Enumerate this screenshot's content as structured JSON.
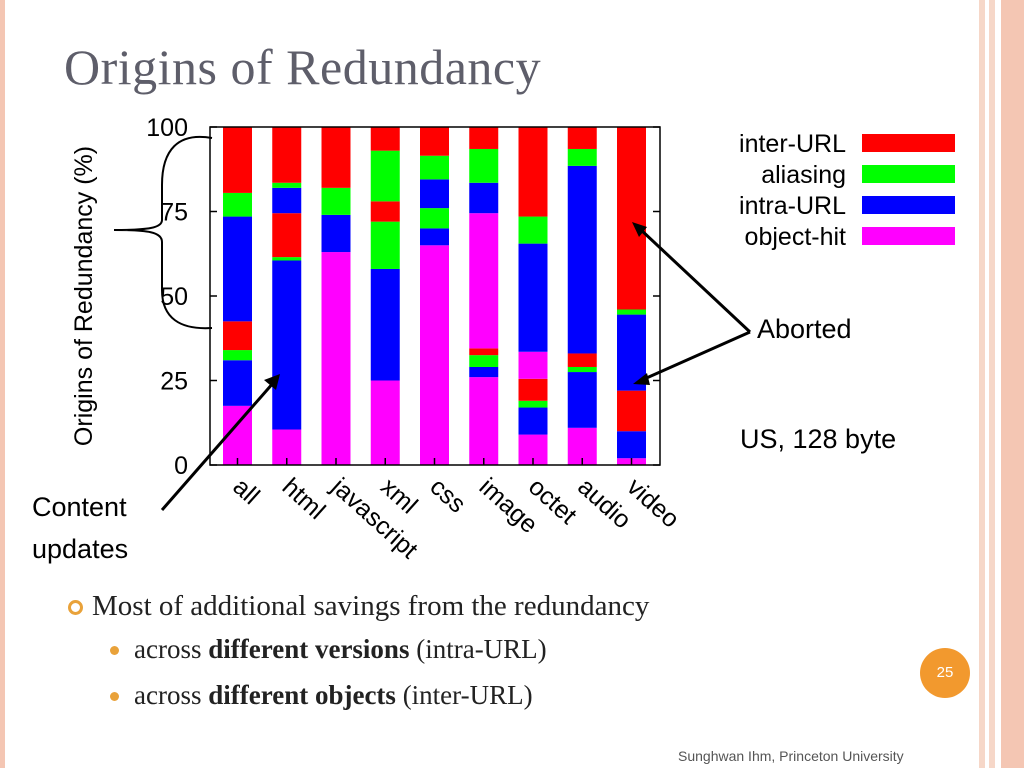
{
  "slide": {
    "title": "Origins of Redundancy",
    "annotations": {
      "content_updates_line1": "Content",
      "content_updates_line2": "updates",
      "aborted": "Aborted",
      "condition": "US, 128 byte"
    },
    "bullets": {
      "main": "Most of additional savings from the redundancy",
      "sub1_pre": "across ",
      "sub1_bold": "different versions",
      "sub1_post": " (intra-URL)",
      "sub2_pre": "across ",
      "sub2_bold": "different objects",
      "sub2_post": " (inter-URL)"
    },
    "page_number": "25",
    "footer": "Sunghwan Ihm, Princeton University"
  },
  "chart_data": {
    "type": "bar",
    "stacked": true,
    "categories": [
      "all",
      "html",
      "javascript",
      "xml",
      "css",
      "image",
      "octet",
      "audio",
      "video"
    ],
    "ylabel": "Origins of Redundancy (%)",
    "ylim": [
      0,
      100
    ],
    "yticks": [
      0,
      25,
      50,
      75,
      100
    ],
    "legend_position": "top-right",
    "bars": [
      {
        "category": "all",
        "segments": [
          {
            "series": "object-hit",
            "value": 17.5
          },
          {
            "series": "intra-URL",
            "value": 13.5
          },
          {
            "series": "aliasing",
            "value": 3
          },
          {
            "series": "inter-URL",
            "value": 8.5
          },
          {
            "series": "intra-URL",
            "value": 31
          },
          {
            "series": "aliasing",
            "value": 7
          },
          {
            "series": "inter-URL",
            "value": 19.5
          }
        ]
      },
      {
        "category": "html",
        "segments": [
          {
            "series": "object-hit",
            "value": 10.5
          },
          {
            "series": "intra-URL",
            "value": 50
          },
          {
            "series": "aliasing",
            "value": 1
          },
          {
            "series": "inter-URL",
            "value": 13
          },
          {
            "series": "intra-URL",
            "value": 7.5
          },
          {
            "series": "aliasing",
            "value": 1.5
          },
          {
            "series": "inter-URL",
            "value": 16.5
          }
        ]
      },
      {
        "category": "javascript",
        "segments": [
          {
            "series": "object-hit",
            "value": 63
          },
          {
            "series": "intra-URL",
            "value": 11
          },
          {
            "series": "aliasing",
            "value": 8
          },
          {
            "series": "inter-URL",
            "value": 18
          }
        ]
      },
      {
        "category": "xml",
        "segments": [
          {
            "series": "object-hit",
            "value": 25
          },
          {
            "series": "intra-URL",
            "value": 33
          },
          {
            "series": "aliasing",
            "value": 14
          },
          {
            "series": "inter-URL",
            "value": 6
          },
          {
            "series": "aliasing",
            "value": 15
          },
          {
            "series": "inter-URL",
            "value": 7
          }
        ]
      },
      {
        "category": "css",
        "segments": [
          {
            "series": "object-hit",
            "value": 65
          },
          {
            "series": "intra-URL",
            "value": 5
          },
          {
            "series": "aliasing",
            "value": 6
          },
          {
            "series": "intra-URL",
            "value": 8.5
          },
          {
            "series": "aliasing",
            "value": 7
          },
          {
            "series": "inter-URL",
            "value": 8.5
          }
        ]
      },
      {
        "category": "image",
        "segments": [
          {
            "series": "object-hit",
            "value": 26
          },
          {
            "series": "intra-URL",
            "value": 3
          },
          {
            "series": "aliasing",
            "value": 3.5
          },
          {
            "series": "inter-URL",
            "value": 2
          },
          {
            "series": "object-hit",
            "value": 40
          },
          {
            "series": "intra-URL",
            "value": 9
          },
          {
            "series": "aliasing",
            "value": 10
          },
          {
            "series": "inter-URL",
            "value": 6.5
          }
        ]
      },
      {
        "category": "octet",
        "segments": [
          {
            "series": "object-hit",
            "value": 9
          },
          {
            "series": "intra-URL",
            "value": 8
          },
          {
            "series": "aliasing",
            "value": 2
          },
          {
            "series": "inter-URL",
            "value": 6.5
          },
          {
            "series": "object-hit",
            "value": 8
          },
          {
            "series": "intra-URL",
            "value": 32
          },
          {
            "series": "aliasing",
            "value": 8
          },
          {
            "series": "inter-URL",
            "value": 26.5
          }
        ]
      },
      {
        "category": "audio",
        "segments": [
          {
            "series": "object-hit",
            "value": 11
          },
          {
            "series": "intra-URL",
            "value": 16.5
          },
          {
            "series": "aliasing",
            "value": 1.5
          },
          {
            "series": "inter-URL",
            "value": 4
          },
          {
            "series": "intra-URL",
            "value": 55.5
          },
          {
            "series": "aliasing",
            "value": 5
          },
          {
            "series": "inter-URL",
            "value": 6.5
          }
        ]
      },
      {
        "category": "video",
        "segments": [
          {
            "series": "object-hit",
            "value": 2
          },
          {
            "series": "intra-URL",
            "value": 8
          },
          {
            "series": "inter-URL",
            "value": 12
          },
          {
            "series": "intra-URL",
            "value": 22.5
          },
          {
            "series": "aliasing",
            "value": 1.5
          },
          {
            "series": "inter-URL",
            "value": 54
          }
        ]
      }
    ],
    "series": [
      {
        "name": "inter-URL",
        "color": "#ff0000"
      },
      {
        "name": "aliasing",
        "color": "#00ff00"
      },
      {
        "name": "intra-URL",
        "color": "#0000ff"
      },
      {
        "name": "object-hit",
        "color": "#ff00ff"
      }
    ]
  }
}
